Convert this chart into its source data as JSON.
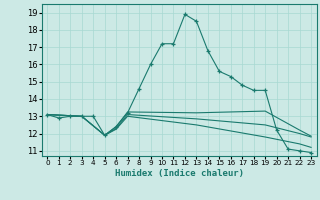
{
  "xlabel": "Humidex (Indice chaleur)",
  "ylabel": "",
  "bg_color": "#cce9e5",
  "line_color": "#1a7a6e",
  "xlim": [
    -0.5,
    23.5
  ],
  "ylim": [
    10.7,
    19.5
  ],
  "yticks": [
    11,
    12,
    13,
    14,
    15,
    16,
    17,
    18,
    19
  ],
  "xticks": [
    0,
    1,
    2,
    3,
    4,
    5,
    6,
    7,
    8,
    9,
    10,
    11,
    12,
    13,
    14,
    15,
    16,
    17,
    18,
    19,
    20,
    21,
    22,
    23
  ],
  "series": [
    {
      "x": [
        0,
        1,
        2,
        3,
        4,
        5,
        6,
        7,
        8,
        9,
        10,
        11,
        12,
        13,
        14,
        15,
        16,
        17,
        18,
        19,
        20,
        21,
        22,
        23
      ],
      "y": [
        13.1,
        12.9,
        13.0,
        13.0,
        13.0,
        11.9,
        12.4,
        13.2,
        14.6,
        16.0,
        17.2,
        17.2,
        18.9,
        18.5,
        16.8,
        15.6,
        15.3,
        14.8,
        14.5,
        14.5,
        12.2,
        11.1,
        11.0,
        10.9
      ],
      "marker": true
    },
    {
      "x": [
        0,
        3,
        5,
        6,
        7,
        13,
        19,
        22,
        23
      ],
      "y": [
        13.1,
        13.0,
        11.9,
        12.4,
        13.25,
        13.2,
        13.3,
        12.2,
        11.85
      ],
      "marker": false
    },
    {
      "x": [
        0,
        3,
        5,
        6,
        7,
        13,
        19,
        22,
        23
      ],
      "y": [
        13.1,
        13.0,
        11.9,
        12.3,
        13.1,
        12.85,
        12.5,
        12.0,
        11.8
      ],
      "marker": false
    },
    {
      "x": [
        0,
        3,
        5,
        6,
        7,
        13,
        19,
        22,
        23
      ],
      "y": [
        13.1,
        13.0,
        11.9,
        12.25,
        13.0,
        12.5,
        11.8,
        11.4,
        11.2
      ],
      "marker": false
    }
  ]
}
